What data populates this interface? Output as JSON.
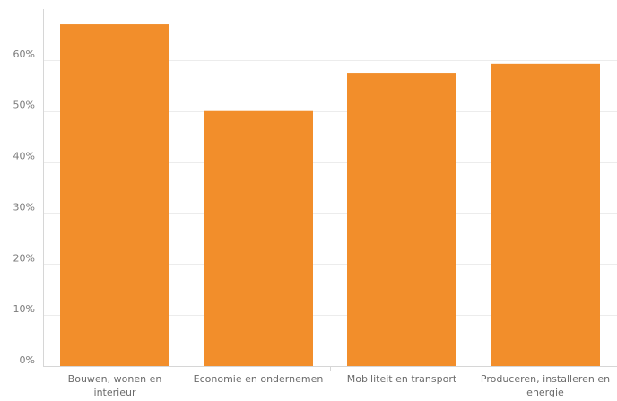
{
  "chart_data": {
    "type": "bar",
    "title": "",
    "xlabel": "",
    "ylabel": "",
    "categories": [
      [
        "Bouwen, wonen en",
        "interieur"
      ],
      [
        "Economie en ondernemen"
      ],
      [
        "Mobiliteit en transport"
      ],
      [
        "Produceren, installeren en",
        "energie"
      ]
    ],
    "values": [
      0.67,
      0.5,
      0.575,
      0.593
    ],
    "ylim": [
      0,
      0.7
    ],
    "yticks": [
      0,
      0.1,
      0.2,
      0.3,
      0.4,
      0.5,
      0.6
    ],
    "ytick_labels": [
      "0%",
      "10%",
      "20%",
      "30%",
      "40%",
      "50%",
      "60%"
    ],
    "bar_color": "#f28e2b",
    "grid": true,
    "legend": "none"
  }
}
